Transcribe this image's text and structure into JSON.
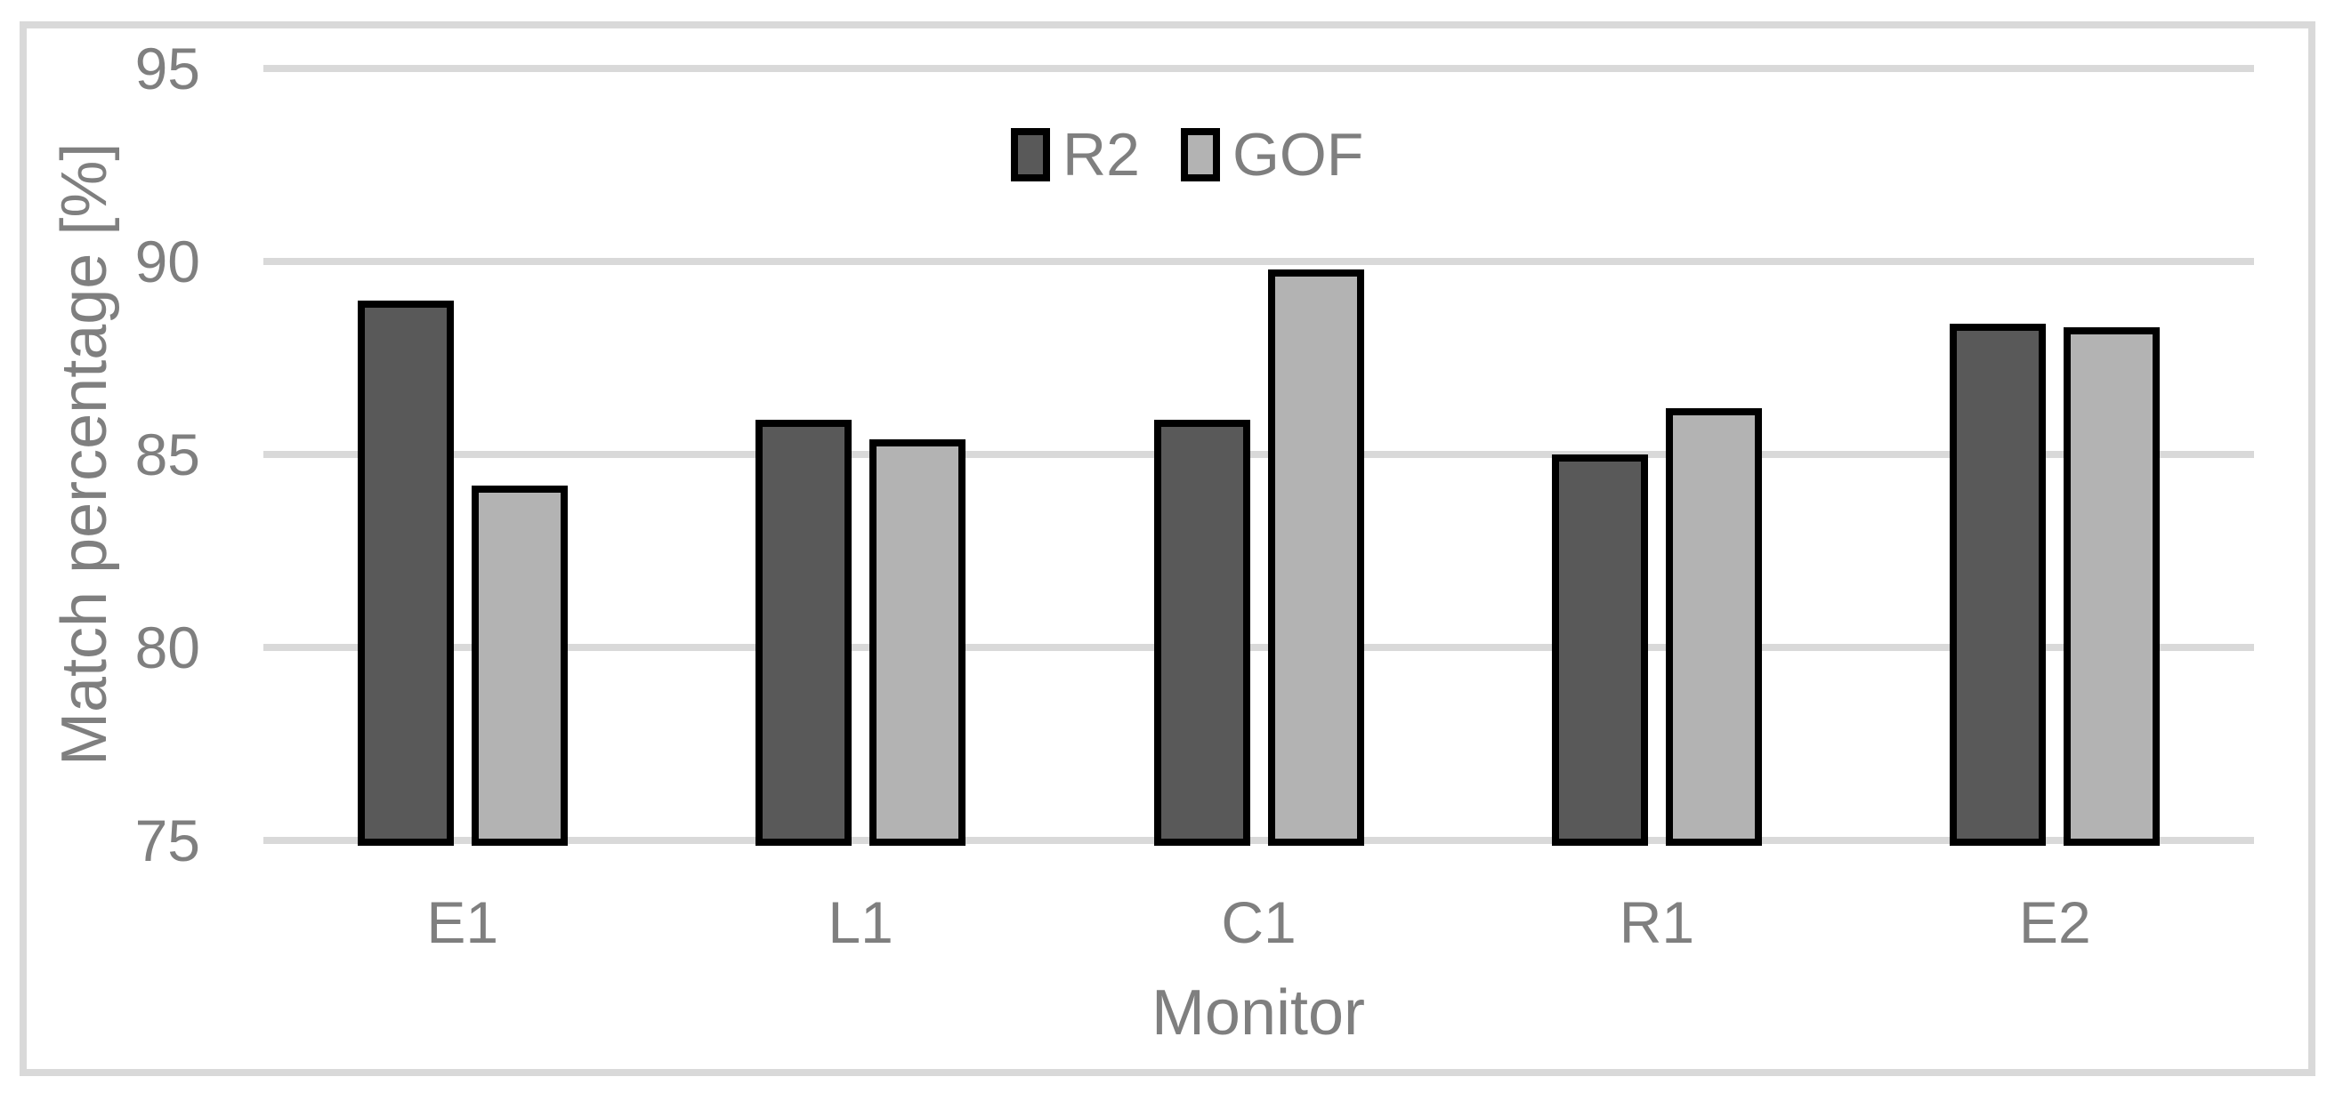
{
  "figure": {
    "frame_color": "#d9d9d9",
    "background_color": "#ffffff",
    "text_color": "#7f7f7f"
  },
  "chart_data": {
    "type": "bar",
    "title": "",
    "categories": [
      "E1",
      "L1",
      "C1",
      "R1",
      "E2"
    ],
    "series": [
      {
        "name": "R2",
        "color": "#595959",
        "values": [
          88.9,
          85.8,
          85.8,
          84.9,
          88.3
        ]
      },
      {
        "name": "GOF",
        "color": "#b3b3b3",
        "values": [
          84.1,
          85.3,
          89.7,
          86.1,
          88.2
        ]
      }
    ],
    "xlabel": "Monitor",
    "ylabel": "Match percentage [%]",
    "ylim": [
      75,
      95
    ],
    "yticks": [
      95,
      90,
      85,
      80,
      75
    ],
    "grid": "horizontal",
    "gridline_color": "#d9d9d9",
    "bar_border_color": "#000000",
    "legend_position": "top-center-inside",
    "legend_labels": [
      "R2",
      "GOF"
    ]
  }
}
